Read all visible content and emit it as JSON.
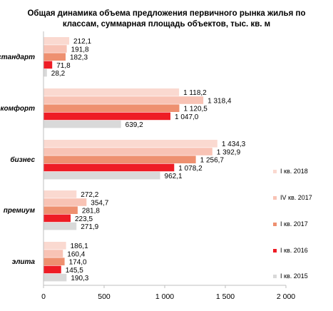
{
  "title_line1": "Общая динамика объема предложения первичного рынка жилья по",
  "title_line2": "классам, суммарная площадь объектов, тыс. кв. м",
  "chart_data": {
    "type": "bar",
    "orientation": "horizontal",
    "title": "Общая динамика объема предложения первичного рынка жилья по классам, суммарная площадь объектов, тыс. кв. м",
    "categories": [
      "стандарт",
      "комфорт",
      "бизнес",
      "премиум",
      "элита"
    ],
    "series": [
      {
        "name": "I кв. 2018",
        "color": "#fad9d0",
        "values": [
          212.1,
          1118.2,
          1434.3,
          272.2,
          186.1
        ],
        "labels": [
          "212,1",
          "1 118,2",
          "1 434,3",
          "272,2",
          "186,1"
        ]
      },
      {
        "name": "IV кв. 2017",
        "color": "#f8c3b5",
        "values": [
          191.8,
          1318.4,
          1392.9,
          354.7,
          160.4
        ],
        "labels": [
          "191,8",
          "1 318,4",
          "1 392,9",
          "354,7",
          "160,4"
        ]
      },
      {
        "name": "I кв. 2017",
        "color": "#ee9070",
        "values": [
          182.3,
          1120.5,
          1256.7,
          281.8,
          174.0
        ],
        "labels": [
          "182,3",
          "1 120,5",
          "1 256,7",
          "281,8",
          "174,0"
        ]
      },
      {
        "name": "I кв. 2016",
        "color": "#ee1c25",
        "values": [
          71.8,
          1047.0,
          1078.2,
          223.5,
          145.5
        ],
        "labels": [
          "71,8",
          "1 047,0",
          "1 078,2",
          "223,5",
          "145,5"
        ]
      },
      {
        "name": "I кв. 2015",
        "color": "#d9d9d9",
        "values": [
          28.2,
          639.2,
          962.1,
          271.9,
          190.3
        ],
        "labels": [
          "28,2",
          "639,2",
          "962,1",
          "271,9",
          "190,3"
        ]
      }
    ],
    "xlim": [
      0,
      2000
    ],
    "xticks": [
      0,
      500,
      1000,
      1500,
      2000
    ],
    "xtick_labels": [
      "0",
      "500",
      "1 000",
      "1 500",
      "2 000"
    ],
    "grid": false,
    "legend_position": "right"
  }
}
